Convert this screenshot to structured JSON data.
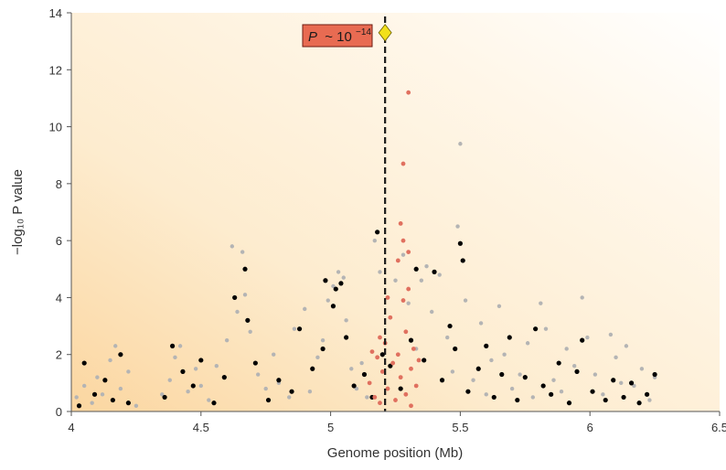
{
  "chart_data": {
    "type": "scatter",
    "title": "",
    "xlabel": "Genome position (Mb)",
    "ylabel": "−log₁₀ P value",
    "xlim": [
      4,
      6.5
    ],
    "ylim": [
      0,
      14
    ],
    "x_ticks": [
      "4",
      "4.5",
      "5",
      "5.5",
      "6",
      "6.5"
    ],
    "y_ticks": [
      "0",
      "2",
      "4",
      "6",
      "8",
      "10",
      "12",
      "14"
    ],
    "grid": false,
    "background": "yellow-orange gradient",
    "colors": {
      "genotyped": "#000000",
      "imputed": "#b4b4b4",
      "highlighted": "#e0705f",
      "lead": "#f2e01a",
      "annotation_box": "#e86b52"
    },
    "lead_snp": {
      "x": 5.21,
      "y": 13.3
    },
    "vline_x": 5.21,
    "annotation": {
      "prefix": "P",
      "text": "~ 10",
      "exponent": "−14"
    },
    "series": [
      {
        "role": "imputed",
        "points": [
          [
            4.02,
            0.5
          ],
          [
            4.05,
            0.9
          ],
          [
            4.08,
            0.3
          ],
          [
            4.1,
            1.2
          ],
          [
            4.12,
            0.6
          ],
          [
            4.15,
            1.8
          ],
          [
            4.17,
            2.3
          ],
          [
            4.19,
            0.8
          ],
          [
            4.22,
            1.4
          ],
          [
            4.25,
            0.2
          ],
          [
            4.35,
            0.6
          ],
          [
            4.38,
            1.1
          ],
          [
            4.4,
            1.9
          ],
          [
            4.42,
            2.3
          ],
          [
            4.45,
            0.7
          ],
          [
            4.48,
            1.5
          ],
          [
            4.5,
            0.9
          ],
          [
            4.53,
            0.4
          ],
          [
            4.56,
            1.6
          ],
          [
            4.6,
            2.5
          ],
          [
            4.62,
            5.8
          ],
          [
            4.64,
            3.5
          ],
          [
            4.66,
            5.6
          ],
          [
            4.67,
            4.1
          ],
          [
            4.69,
            2.8
          ],
          [
            4.72,
            1.3
          ],
          [
            4.75,
            0.8
          ],
          [
            4.78,
            2.0
          ],
          [
            4.8,
            1.0
          ],
          [
            4.84,
            0.5
          ],
          [
            4.86,
            2.9
          ],
          [
            4.9,
            3.6
          ],
          [
            4.92,
            0.7
          ],
          [
            4.95,
            1.9
          ],
          [
            4.97,
            2.5
          ],
          [
            4.99,
            3.9
          ],
          [
            5.01,
            4.4
          ],
          [
            5.03,
            4.9
          ],
          [
            5.05,
            4.7
          ],
          [
            5.06,
            3.2
          ],
          [
            5.08,
            1.5
          ],
          [
            5.1,
            0.8
          ],
          [
            5.12,
            1.7
          ],
          [
            5.14,
            0.5
          ],
          [
            5.17,
            6.0
          ],
          [
            5.19,
            4.9
          ],
          [
            5.25,
            4.6
          ],
          [
            5.28,
            5.5
          ],
          [
            5.3,
            3.8
          ],
          [
            5.33,
            2.2
          ],
          [
            5.35,
            4.6
          ],
          [
            5.37,
            5.1
          ],
          [
            5.39,
            3.5
          ],
          [
            5.42,
            4.8
          ],
          [
            5.45,
            2.6
          ],
          [
            5.47,
            1.4
          ],
          [
            5.49,
            6.5
          ],
          [
            5.5,
            9.4
          ],
          [
            5.52,
            3.9
          ],
          [
            5.55,
            1.1
          ],
          [
            5.58,
            3.1
          ],
          [
            5.6,
            0.6
          ],
          [
            5.62,
            1.8
          ],
          [
            5.65,
            3.7
          ],
          [
            5.67,
            2.0
          ],
          [
            5.7,
            0.8
          ],
          [
            5.73,
            1.3
          ],
          [
            5.76,
            2.4
          ],
          [
            5.78,
            0.5
          ],
          [
            5.81,
            3.8
          ],
          [
            5.83,
            2.9
          ],
          [
            5.86,
            1.1
          ],
          [
            5.89,
            0.7
          ],
          [
            5.91,
            2.2
          ],
          [
            5.94,
            1.6
          ],
          [
            5.97,
            4.0
          ],
          [
            5.99,
            2.6
          ],
          [
            6.02,
            1.3
          ],
          [
            6.05,
            0.6
          ],
          [
            6.08,
            2.7
          ],
          [
            6.1,
            1.9
          ],
          [
            6.12,
            1.0
          ],
          [
            6.14,
            2.3
          ],
          [
            6.17,
            0.9
          ],
          [
            6.2,
            1.5
          ],
          [
            6.23,
            0.4
          ],
          [
            6.25,
            1.2
          ]
        ]
      },
      {
        "role": "genotyped",
        "points": [
          [
            4.03,
            0.2
          ],
          [
            4.05,
            1.7
          ],
          [
            4.09,
            0.6
          ],
          [
            4.13,
            1.1
          ],
          [
            4.16,
            0.4
          ],
          [
            4.19,
            2.0
          ],
          [
            4.22,
            0.3
          ],
          [
            4.36,
            0.5
          ],
          [
            4.39,
            2.3
          ],
          [
            4.43,
            1.4
          ],
          [
            4.47,
            0.9
          ],
          [
            4.5,
            1.8
          ],
          [
            4.55,
            0.3
          ],
          [
            4.59,
            1.2
          ],
          [
            4.63,
            4.0
          ],
          [
            4.67,
            5.0
          ],
          [
            4.68,
            3.2
          ],
          [
            4.71,
            1.7
          ],
          [
            4.76,
            0.4
          ],
          [
            4.8,
            1.1
          ],
          [
            4.85,
            0.7
          ],
          [
            4.88,
            2.9
          ],
          [
            4.93,
            1.5
          ],
          [
            4.97,
            2.2
          ],
          [
            4.98,
            4.6
          ],
          [
            5.01,
            3.7
          ],
          [
            5.02,
            4.3
          ],
          [
            5.04,
            4.5
          ],
          [
            5.06,
            2.6
          ],
          [
            5.09,
            0.9
          ],
          [
            5.13,
            1.3
          ],
          [
            5.16,
            0.5
          ],
          [
            5.18,
            6.3
          ],
          [
            5.2,
            2.0
          ],
          [
            5.23,
            1.6
          ],
          [
            5.27,
            0.8
          ],
          [
            5.31,
            2.5
          ],
          [
            5.33,
            5.0
          ],
          [
            5.36,
            1.8
          ],
          [
            5.4,
            4.9
          ],
          [
            5.43,
            1.1
          ],
          [
            5.46,
            3.0
          ],
          [
            5.48,
            2.2
          ],
          [
            5.5,
            5.9
          ],
          [
            5.51,
            5.3
          ],
          [
            5.53,
            0.7
          ],
          [
            5.57,
            1.5
          ],
          [
            5.6,
            2.3
          ],
          [
            5.63,
            0.5
          ],
          [
            5.66,
            1.3
          ],
          [
            5.69,
            2.6
          ],
          [
            5.72,
            0.4
          ],
          [
            5.75,
            1.2
          ],
          [
            5.79,
            2.9
          ],
          [
            5.82,
            0.9
          ],
          [
            5.85,
            0.6
          ],
          [
            5.88,
            1.7
          ],
          [
            5.92,
            0.3
          ],
          [
            5.95,
            1.4
          ],
          [
            5.97,
            2.5
          ],
          [
            6.01,
            0.7
          ],
          [
            6.06,
            0.4
          ],
          [
            6.09,
            1.1
          ],
          [
            6.13,
            0.5
          ],
          [
            6.16,
            1.0
          ],
          [
            6.19,
            0.3
          ],
          [
            6.22,
            0.6
          ],
          [
            6.25,
            1.3
          ]
        ]
      },
      {
        "role": "highlighted",
        "points": [
          [
            5.17,
            0.5
          ],
          [
            5.18,
            1.9
          ],
          [
            5.19,
            2.6
          ],
          [
            5.19,
            0.3
          ],
          [
            5.2,
            1.4
          ],
          [
            5.21,
            2.4
          ],
          [
            5.22,
            0.8
          ],
          [
            5.23,
            3.3
          ],
          [
            5.24,
            1.7
          ],
          [
            5.25,
            0.4
          ],
          [
            5.26,
            5.3
          ],
          [
            5.26,
            2.0
          ],
          [
            5.27,
            6.6
          ],
          [
            5.27,
            1.2
          ],
          [
            5.28,
            3.9
          ],
          [
            5.28,
            6.0
          ],
          [
            5.28,
            8.7
          ],
          [
            5.29,
            0.6
          ],
          [
            5.29,
            2.8
          ],
          [
            5.3,
            11.2
          ],
          [
            5.3,
            4.3
          ],
          [
            5.31,
            1.5
          ],
          [
            5.31,
            0.2
          ],
          [
            5.32,
            2.2
          ],
          [
            5.33,
            0.9
          ],
          [
            5.34,
            1.8
          ],
          [
            5.16,
            2.1
          ],
          [
            5.15,
            1.0
          ],
          [
            5.22,
            4.0
          ],
          [
            5.3,
            5.6
          ]
        ]
      }
    ]
  }
}
